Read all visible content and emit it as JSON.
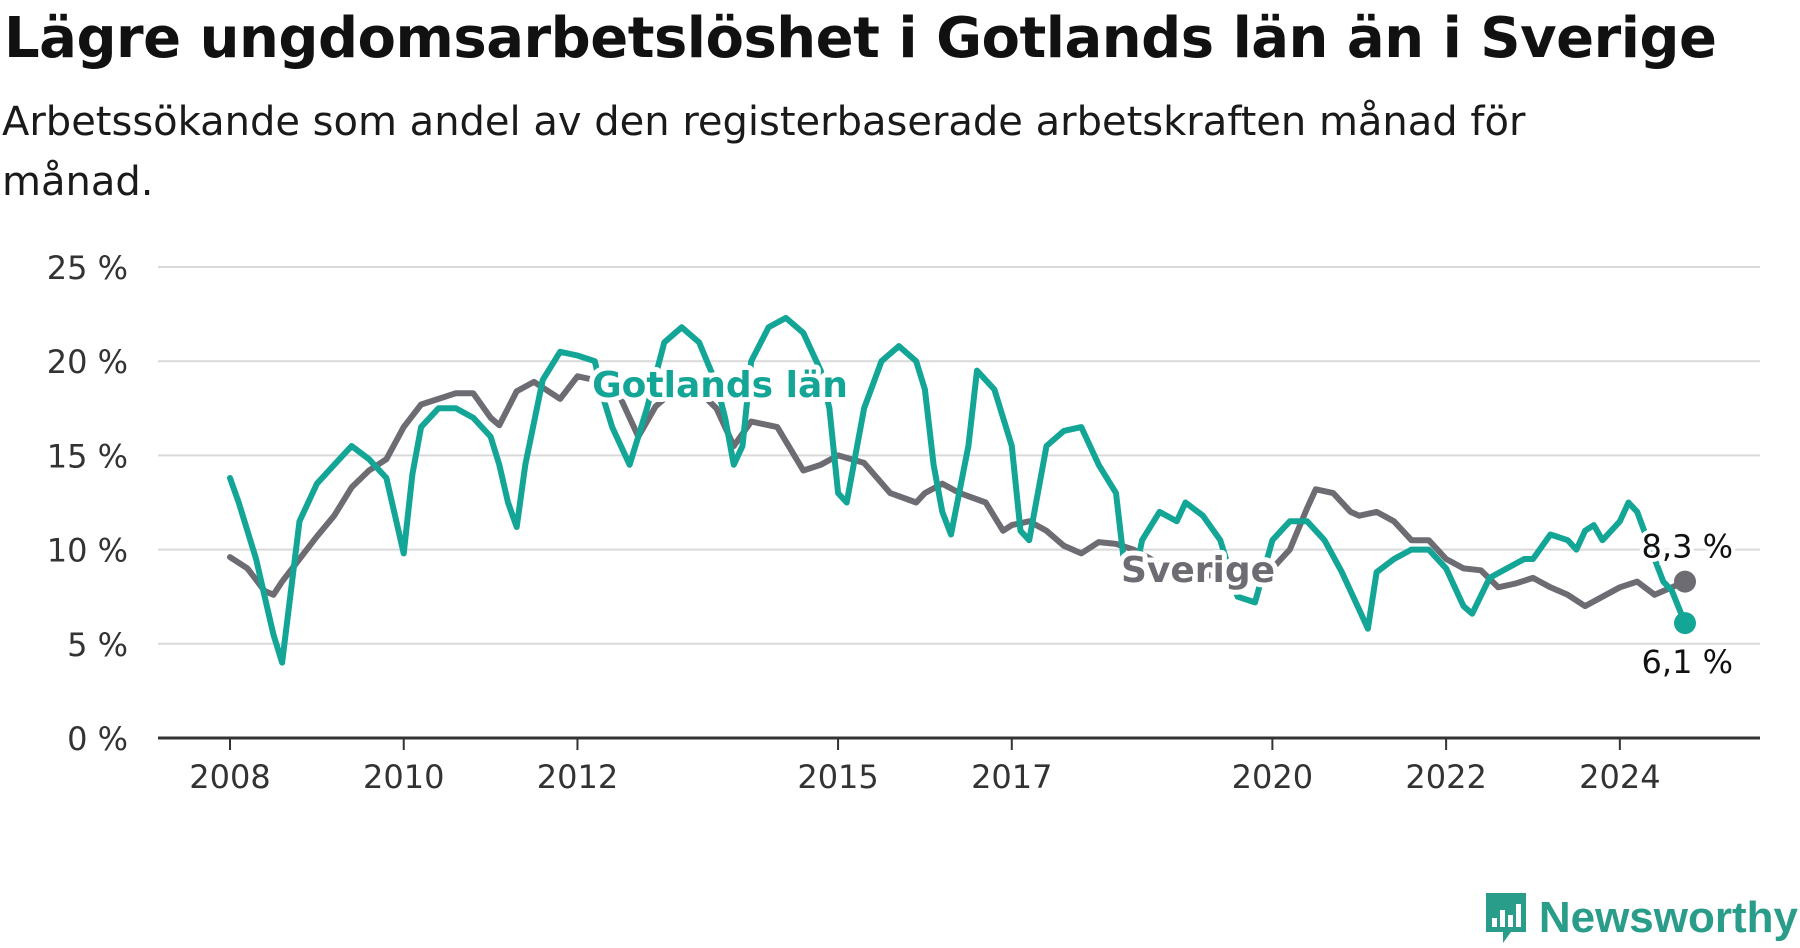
{
  "title": "Lägre ungdomsarbetslöshet i Gotlands län än i Sverige",
  "subtitle": "Arbetssökande som andel av den registerbaserade arbetskraften månad för månad.",
  "brand": {
    "name": "Newsworthy",
    "icon": "newsworthy-logo-icon",
    "color": "#2a9c8a"
  },
  "chart_data": {
    "type": "line",
    "ylim": [
      0,
      25
    ],
    "xlim": [
      2008,
      2024.75
    ],
    "y_ticks": [
      0,
      5,
      10,
      15,
      20,
      25
    ],
    "y_tick_labels": [
      "0 %",
      "5 %",
      "10 %",
      "15 %",
      "20 %",
      "25 %"
    ],
    "x_ticks": [
      2008,
      2010,
      2012,
      2015,
      2017,
      2020,
      2022,
      2024
    ],
    "x_tick_labels": [
      "2008",
      "2010",
      "2012",
      "2015",
      "2017",
      "2020",
      "2022",
      "2024"
    ],
    "grid": true,
    "series": [
      {
        "name": "Sverige",
        "color": "#6e6c73",
        "end_label": "8,3 %",
        "points": [
          [
            2008.0,
            9.6
          ],
          [
            2008.2,
            9.0
          ],
          [
            2008.4,
            7.8
          ],
          [
            2008.5,
            7.6
          ],
          [
            2008.6,
            8.3
          ],
          [
            2008.8,
            9.5
          ],
          [
            2009.0,
            10.7
          ],
          [
            2009.2,
            11.8
          ],
          [
            2009.4,
            13.3
          ],
          [
            2009.6,
            14.2
          ],
          [
            2009.8,
            14.8
          ],
          [
            2010.0,
            16.5
          ],
          [
            2010.2,
            17.7
          ],
          [
            2010.4,
            18.0
          ],
          [
            2010.6,
            18.3
          ],
          [
            2010.8,
            18.3
          ],
          [
            2011.0,
            17.0
          ],
          [
            2011.1,
            16.6
          ],
          [
            2011.3,
            18.4
          ],
          [
            2011.5,
            18.9
          ],
          [
            2011.8,
            18.0
          ],
          [
            2012.0,
            19.2
          ],
          [
            2012.2,
            19.0
          ],
          [
            2012.5,
            18.0
          ],
          [
            2012.7,
            16.0
          ],
          [
            2012.9,
            17.6
          ],
          [
            2013.0,
            18.0
          ],
          [
            2013.2,
            18.6
          ],
          [
            2013.4,
            18.4
          ],
          [
            2013.6,
            17.5
          ],
          [
            2013.8,
            15.5
          ],
          [
            2014.0,
            16.8
          ],
          [
            2014.3,
            16.5
          ],
          [
            2014.6,
            14.2
          ],
          [
            2014.8,
            14.5
          ],
          [
            2015.0,
            15.0
          ],
          [
            2015.3,
            14.6
          ],
          [
            2015.6,
            13.0
          ],
          [
            2015.9,
            12.5
          ],
          [
            2016.0,
            13.0
          ],
          [
            2016.2,
            13.5
          ],
          [
            2016.4,
            13.0
          ],
          [
            2016.7,
            12.5
          ],
          [
            2016.9,
            11.0
          ],
          [
            2017.0,
            11.3
          ],
          [
            2017.2,
            11.5
          ],
          [
            2017.4,
            11.0
          ],
          [
            2017.6,
            10.2
          ],
          [
            2017.8,
            9.8
          ],
          [
            2018.0,
            10.4
          ],
          [
            2018.2,
            10.3
          ],
          [
            2018.4,
            10.0
          ],
          [
            2018.6,
            9.5
          ],
          [
            2018.8,
            8.9
          ],
          [
            2019.0,
            8.7
          ],
          [
            2019.2,
            8.6
          ],
          [
            2019.4,
            8.7
          ],
          [
            2019.6,
            8.6
          ],
          [
            2019.8,
            8.9
          ],
          [
            2020.0,
            9.0
          ],
          [
            2020.2,
            10.0
          ],
          [
            2020.4,
            12.2
          ],
          [
            2020.5,
            13.2
          ],
          [
            2020.7,
            13.0
          ],
          [
            2020.9,
            12.0
          ],
          [
            2021.0,
            11.8
          ],
          [
            2021.2,
            12.0
          ],
          [
            2021.4,
            11.5
          ],
          [
            2021.6,
            10.5
          ],
          [
            2021.8,
            10.5
          ],
          [
            2022.0,
            9.5
          ],
          [
            2022.2,
            9.0
          ],
          [
            2022.4,
            8.9
          ],
          [
            2022.6,
            8.0
          ],
          [
            2022.8,
            8.2
          ],
          [
            2023.0,
            8.5
          ],
          [
            2023.2,
            8.0
          ],
          [
            2023.4,
            7.6
          ],
          [
            2023.6,
            7.0
          ],
          [
            2023.8,
            7.5
          ],
          [
            2024.0,
            8.0
          ],
          [
            2024.2,
            8.3
          ],
          [
            2024.4,
            7.6
          ],
          [
            2024.6,
            8.0
          ],
          [
            2024.75,
            8.3
          ]
        ]
      },
      {
        "name": "Gotlands län",
        "color": "#13a596",
        "end_label": "6,1 %",
        "points": [
          [
            2008.0,
            13.8
          ],
          [
            2008.1,
            12.5
          ],
          [
            2008.3,
            9.5
          ],
          [
            2008.4,
            7.5
          ],
          [
            2008.5,
            5.5
          ],
          [
            2008.6,
            4.0
          ],
          [
            2008.8,
            11.5
          ],
          [
            2009.0,
            13.5
          ],
          [
            2009.2,
            14.5
          ],
          [
            2009.4,
            15.5
          ],
          [
            2009.6,
            14.8
          ],
          [
            2009.8,
            13.8
          ],
          [
            2010.0,
            9.8
          ],
          [
            2010.1,
            14.0
          ],
          [
            2010.2,
            16.5
          ],
          [
            2010.4,
            17.5
          ],
          [
            2010.6,
            17.5
          ],
          [
            2010.8,
            17.0
          ],
          [
            2011.0,
            16.0
          ],
          [
            2011.1,
            14.5
          ],
          [
            2011.2,
            12.5
          ],
          [
            2011.3,
            11.2
          ],
          [
            2011.4,
            14.5
          ],
          [
            2011.6,
            19.0
          ],
          [
            2011.8,
            20.5
          ],
          [
            2012.0,
            20.3
          ],
          [
            2012.2,
            20.0
          ],
          [
            2012.3,
            18.0
          ],
          [
            2012.4,
            16.5
          ],
          [
            2012.6,
            14.5
          ],
          [
            2012.8,
            17.5
          ],
          [
            2013.0,
            21.0
          ],
          [
            2013.2,
            21.8
          ],
          [
            2013.4,
            21.0
          ],
          [
            2013.6,
            18.8
          ],
          [
            2013.7,
            17.0
          ],
          [
            2013.8,
            14.5
          ],
          [
            2013.9,
            15.5
          ],
          [
            2014.0,
            20.0
          ],
          [
            2014.2,
            21.8
          ],
          [
            2014.4,
            22.3
          ],
          [
            2014.6,
            21.5
          ],
          [
            2014.8,
            19.5
          ],
          [
            2014.9,
            17.5
          ],
          [
            2015.0,
            13.0
          ],
          [
            2015.1,
            12.5
          ],
          [
            2015.3,
            17.5
          ],
          [
            2015.5,
            20.0
          ],
          [
            2015.7,
            20.8
          ],
          [
            2015.9,
            20.0
          ],
          [
            2016.0,
            18.5
          ],
          [
            2016.1,
            14.5
          ],
          [
            2016.2,
            12.0
          ],
          [
            2016.3,
            10.8
          ],
          [
            2016.5,
            15.5
          ],
          [
            2016.6,
            19.5
          ],
          [
            2016.8,
            18.5
          ],
          [
            2016.9,
            17.0
          ],
          [
            2017.0,
            15.5
          ],
          [
            2017.1,
            11.0
          ],
          [
            2017.2,
            10.5
          ],
          [
            2017.4,
            15.5
          ],
          [
            2017.6,
            16.3
          ],
          [
            2017.8,
            16.5
          ],
          [
            2018.0,
            14.5
          ],
          [
            2018.2,
            13.0
          ],
          [
            2018.3,
            9.0
          ],
          [
            2018.4,
            8.3
          ],
          [
            2018.5,
            10.5
          ],
          [
            2018.7,
            12.0
          ],
          [
            2018.9,
            11.5
          ],
          [
            2019.0,
            12.5
          ],
          [
            2019.2,
            11.8
          ],
          [
            2019.4,
            10.5
          ],
          [
            2019.6,
            7.5
          ],
          [
            2019.8,
            7.2
          ],
          [
            2020.0,
            10.5
          ],
          [
            2020.2,
            11.5
          ],
          [
            2020.4,
            11.5
          ],
          [
            2020.6,
            10.5
          ],
          [
            2020.8,
            8.8
          ],
          [
            2021.0,
            6.8
          ],
          [
            2021.1,
            5.8
          ],
          [
            2021.2,
            8.8
          ],
          [
            2021.4,
            9.5
          ],
          [
            2021.6,
            10.0
          ],
          [
            2021.8,
            10.0
          ],
          [
            2022.0,
            9.0
          ],
          [
            2022.1,
            8.0
          ],
          [
            2022.2,
            7.0
          ],
          [
            2022.3,
            6.6
          ],
          [
            2022.5,
            8.5
          ],
          [
            2022.7,
            9.0
          ],
          [
            2022.9,
            9.5
          ],
          [
            2023.0,
            9.5
          ],
          [
            2023.2,
            10.8
          ],
          [
            2023.4,
            10.5
          ],
          [
            2023.5,
            10.0
          ],
          [
            2023.6,
            11.0
          ],
          [
            2023.7,
            11.3
          ],
          [
            2023.8,
            10.5
          ],
          [
            2024.0,
            11.5
          ],
          [
            2024.1,
            12.5
          ],
          [
            2024.2,
            12.0
          ],
          [
            2024.4,
            9.5
          ],
          [
            2024.5,
            8.3
          ],
          [
            2024.6,
            7.8
          ],
          [
            2024.75,
            6.1
          ]
        ]
      }
    ],
    "annotations": [
      {
        "text": "Gotlands län",
        "series": "Gotlands län"
      },
      {
        "text": "Sverige",
        "series": "Sverige"
      }
    ]
  }
}
